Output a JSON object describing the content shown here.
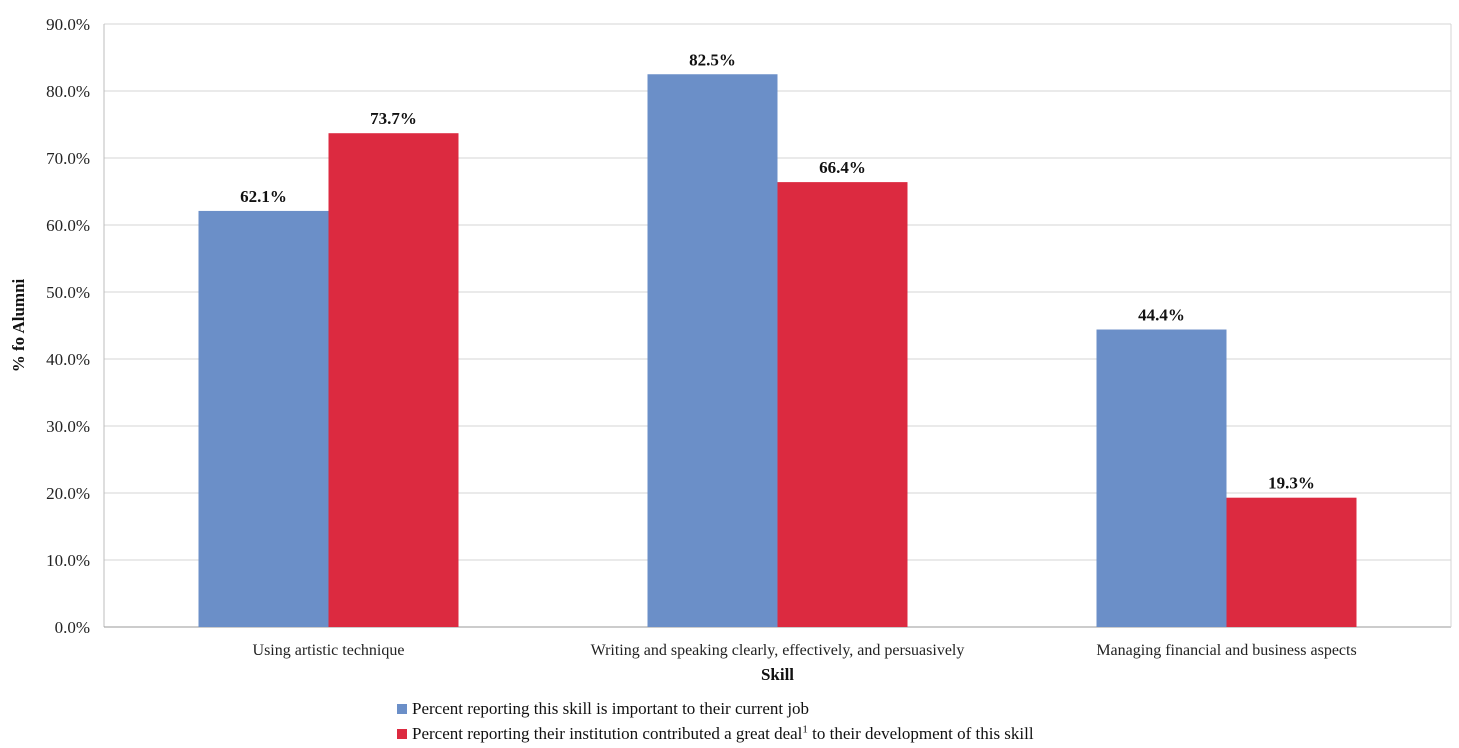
{
  "chart_data": {
    "type": "bar",
    "categories": [
      "Using artistic technique",
      "Writing and speaking clearly, effectively, and persuasively",
      "Managing financial and business aspects"
    ],
    "series": [
      {
        "name": "Percent reporting this skill is important to their current job",
        "values": [
          62.1,
          82.5,
          44.4
        ],
        "labels": [
          "62.1%",
          "82.5%",
          "44.4%"
        ],
        "color": "#6b8fc8"
      },
      {
        "name": "Percent reporting their institution contributed a great deal",
        "name_sup": "1",
        "name_suffix": " to their development of this skill",
        "values": [
          73.7,
          66.4,
          19.3
        ],
        "labels": [
          "73.7%",
          "66.4%",
          "19.3%"
        ],
        "color": "#dc2a40"
      }
    ],
    "xlabel": "Skill",
    "ylabel": "% fo Alumni",
    "ylim": [
      0,
      90
    ],
    "yticks": [
      "0.0%",
      "10.0%",
      "20.0%",
      "30.0%",
      "40.0%",
      "50.0%",
      "60.0%",
      "70.0%",
      "80.0%",
      "90.0%"
    ],
    "grid": true,
    "legend_position": "bottom"
  }
}
